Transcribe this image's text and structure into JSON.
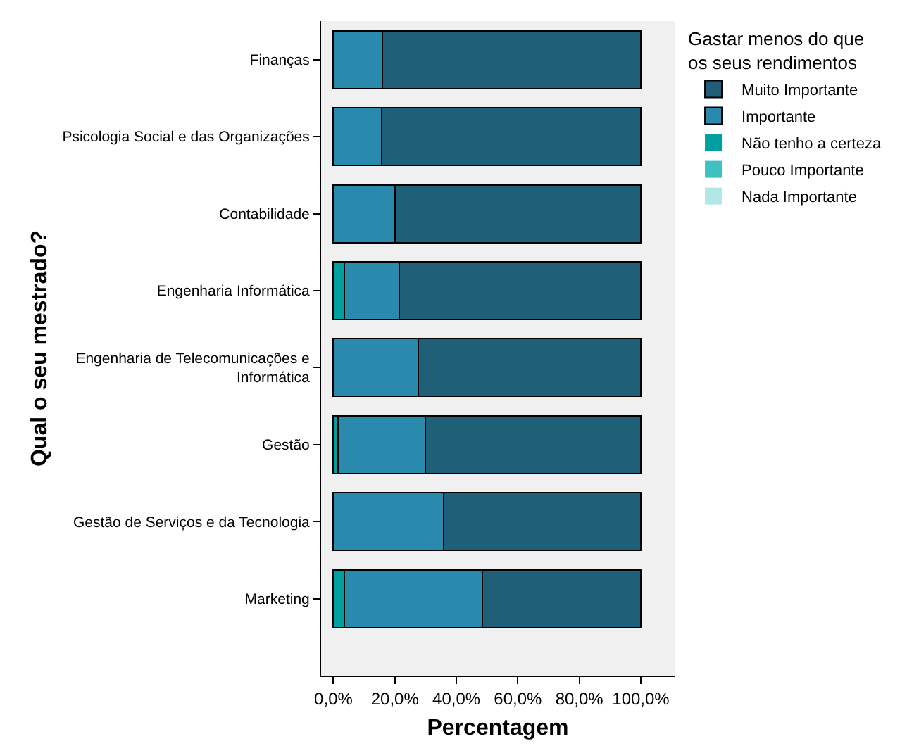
{
  "chart_data": {
    "type": "bar",
    "orientation": "horizontal",
    "stacked": true,
    "xlabel": "Percentagem",
    "ylabel": "Qual o seu mestrado?",
    "legend_title": "Gastar menos do que os seus rendimentos",
    "categories": [
      "Finanças",
      "Psicologia Social e das Organizações",
      "Contabilidade",
      "Engenharia Informática",
      "Engenharia de Telecomunicações e Informática",
      "Gestão",
      "Gestão de Serviços e da Tecnologia",
      "Marketing"
    ],
    "series": [
      {
        "name": "Nada Importante",
        "color": "#b3e6e6",
        "values": [
          0,
          0,
          0,
          0,
          0,
          0,
          0,
          0
        ]
      },
      {
        "name": "Pouco Importante",
        "color": "#3fc1c1",
        "values": [
          0,
          0,
          0,
          0,
          0,
          0,
          0,
          0
        ]
      },
      {
        "name": "Não tenho a certeza",
        "color": "#00a0a0",
        "values": [
          0,
          0,
          0,
          3.6,
          0,
          1.4,
          0,
          3.6
        ]
      },
      {
        "name": "Importante",
        "color": "#2a8aad",
        "values": [
          16.0,
          15.8,
          20.0,
          17.9,
          27.5,
          28.5,
          35.9,
          44.9
        ]
      },
      {
        "name": "Muito Importante",
        "color": "#1f5f77",
        "values": [
          84.0,
          84.2,
          80.0,
          78.5,
          72.5,
          70.1,
          64.1,
          51.5
        ]
      }
    ],
    "xlim": [
      -4,
      111
    ],
    "xticks": [
      {
        "value": 0,
        "label": "0,0%"
      },
      {
        "value": 20,
        "label": "20,0%"
      },
      {
        "value": 40,
        "label": "40,0%"
      },
      {
        "value": 60,
        "label": "60,0%"
      },
      {
        "value": 80,
        "label": "80,0%"
      },
      {
        "value": 100,
        "label": "100,0%"
      }
    ],
    "grid": false,
    "legend": "top right"
  }
}
